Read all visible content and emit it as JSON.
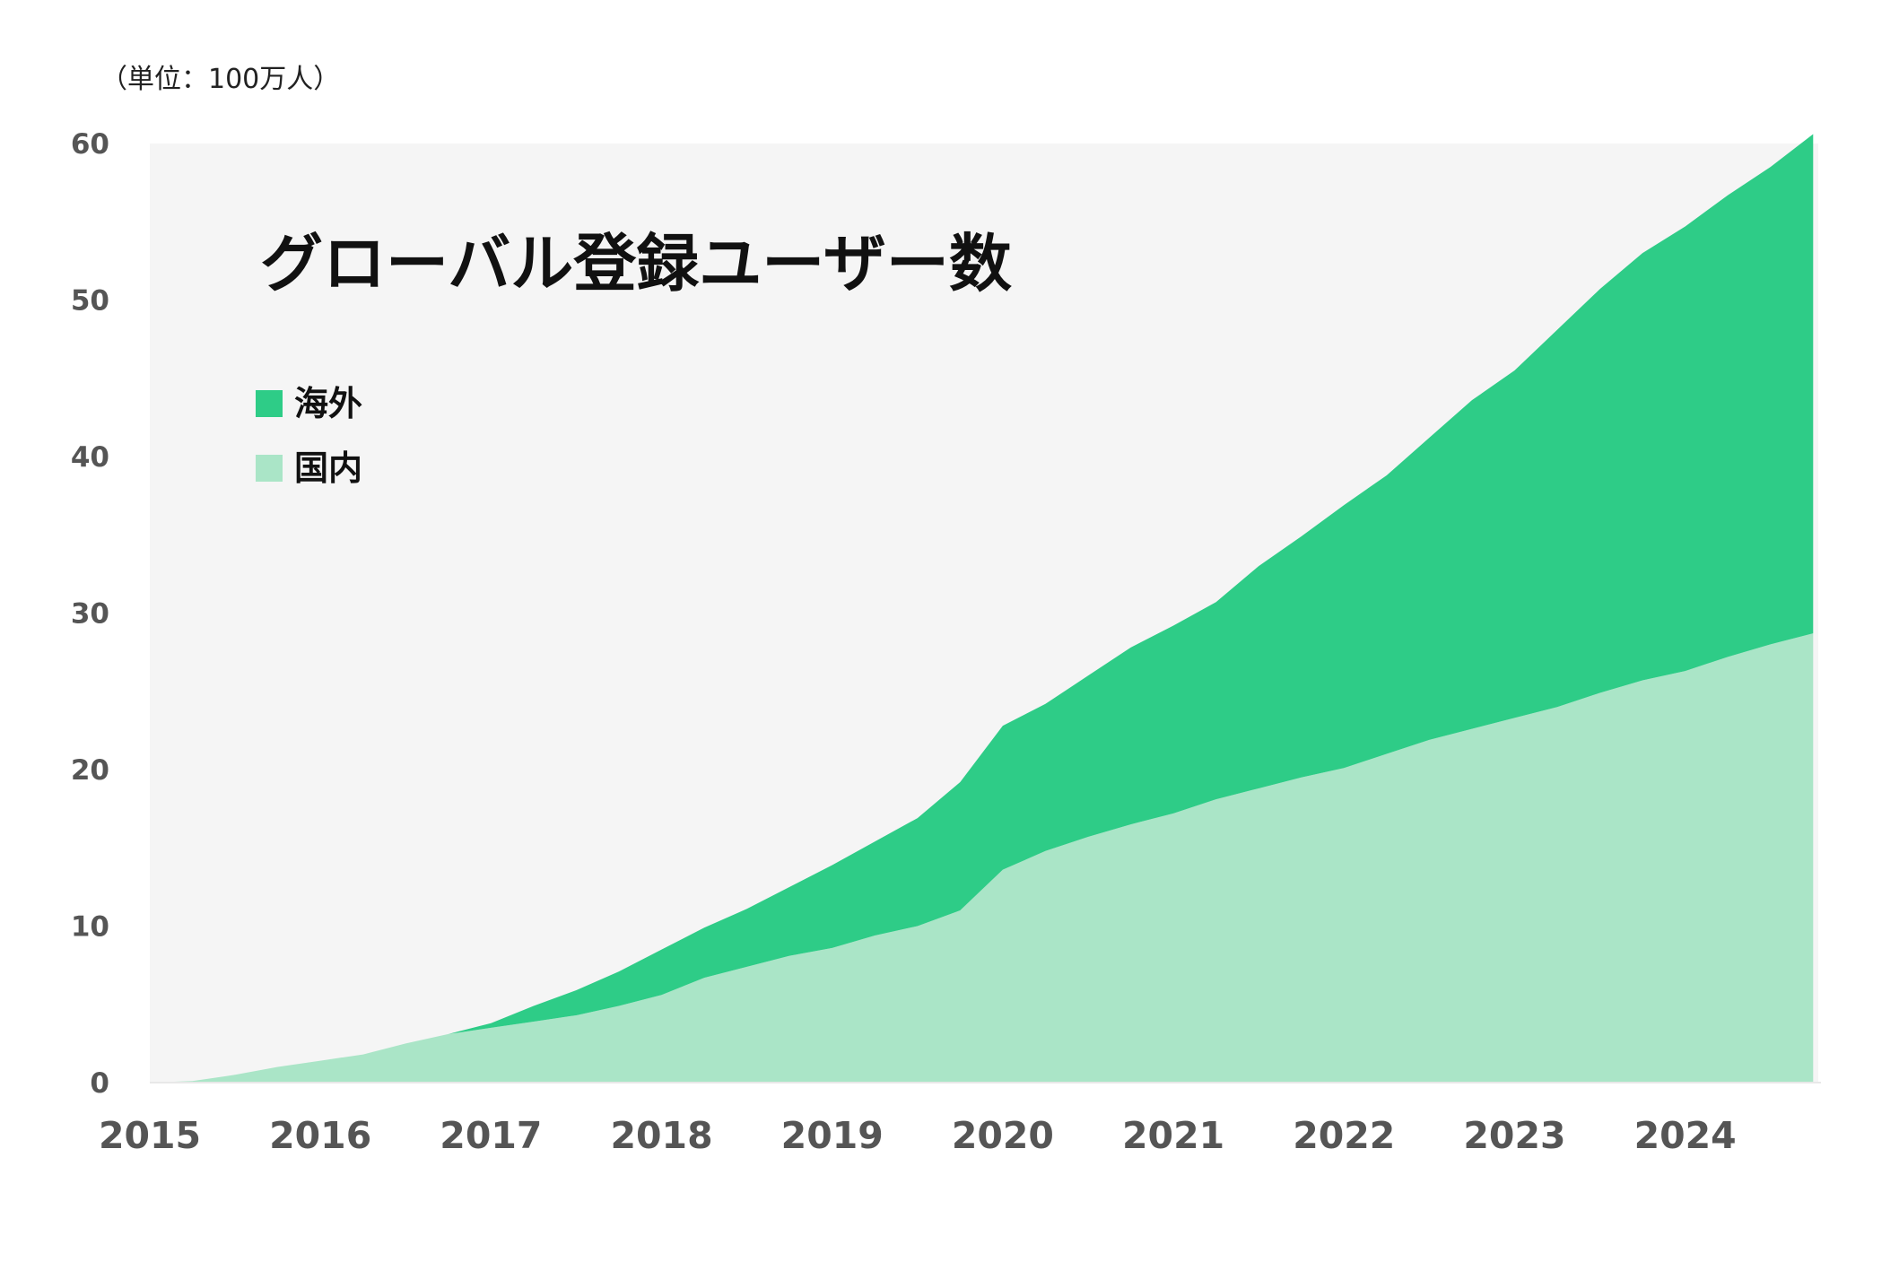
{
  "chart_data": {
    "type": "area",
    "stacked": true,
    "title": "グローバル登録ユーザー数",
    "unit_label": "（単位：100万人）",
    "xlabel": "",
    "ylabel": "",
    "x_ticks": [
      "2015",
      "2016",
      "2017",
      "2018",
      "2019",
      "2020",
      "2021",
      "2022",
      "2023",
      "2024"
    ],
    "y_ticks": [
      0,
      10,
      20,
      30,
      40,
      50,
      60
    ],
    "ylim": [
      0,
      60
    ],
    "grid": false,
    "legend_position": "top-left",
    "background_color": "#f5f5f5",
    "x": [
      2015.0,
      2015.25,
      2015.5,
      2015.75,
      2016.0,
      2016.25,
      2016.5,
      2016.75,
      2017.0,
      2017.25,
      2017.5,
      2017.75,
      2018.0,
      2018.25,
      2018.5,
      2018.75,
      2019.0,
      2019.25,
      2019.5,
      2019.75,
      2020.0,
      2020.25,
      2020.5,
      2020.75,
      2021.0,
      2021.25,
      2021.5,
      2021.75,
      2022.0,
      2022.25,
      2022.5,
      2022.75,
      2023.0,
      2023.25,
      2023.5,
      2023.75,
      2024.0,
      2024.25,
      2024.5,
      2024.75
    ],
    "series": [
      {
        "name": "国内",
        "color": "#aae5c7",
        "values": [
          0.0,
          0.1,
          0.5,
          1.0,
          1.4,
          1.8,
          2.5,
          3.1,
          3.5,
          3.9,
          4.3,
          4.9,
          5.6,
          6.7,
          7.4,
          8.1,
          8.6,
          9.4,
          10.0,
          11.0,
          13.6,
          14.8,
          15.7,
          16.5,
          17.2,
          18.1,
          18.8,
          19.5,
          20.1,
          21.0,
          21.9,
          22.6,
          23.3,
          24.0,
          24.9,
          25.7,
          26.3,
          27.2,
          28.0,
          28.7
        ]
      },
      {
        "name": "海外",
        "color": "#2ecc87",
        "values": [
          0.0,
          0.0,
          0.0,
          0.0,
          0.0,
          0.0,
          0.0,
          0.0,
          0.3,
          1.0,
          1.6,
          2.2,
          2.9,
          3.2,
          3.7,
          4.4,
          5.3,
          6.0,
          6.9,
          8.2,
          9.2,
          9.4,
          10.3,
          11.3,
          12.0,
          12.6,
          14.2,
          15.4,
          16.8,
          17.8,
          19.3,
          21.0,
          22.2,
          24.1,
          25.8,
          27.3,
          28.4,
          29.5,
          30.5,
          31.9
        ]
      }
    ]
  }
}
